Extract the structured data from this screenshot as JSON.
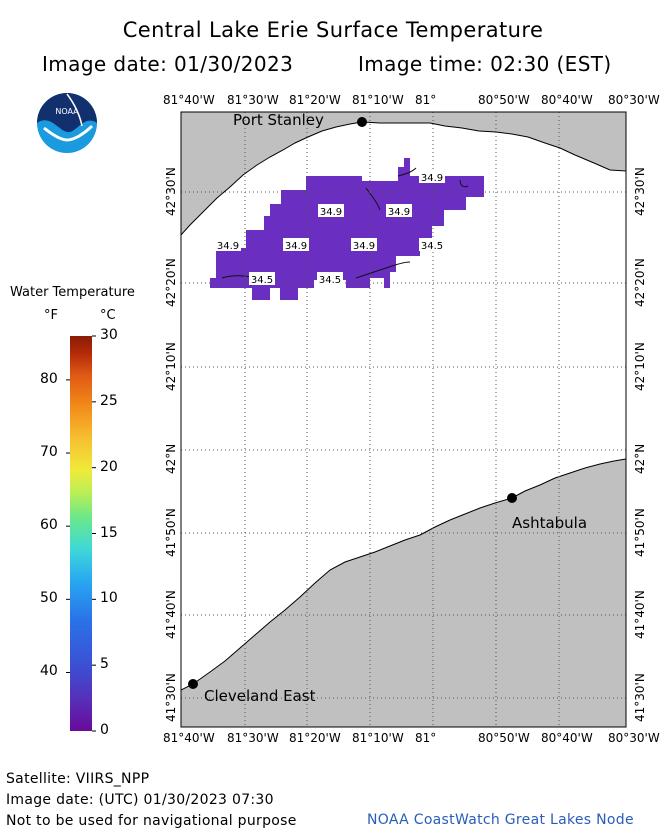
{
  "title": "Central Lake Erie Surface Temperature",
  "image_date": "Image date: 01/30/2023",
  "image_time": "Image time: 02:30 (EST)",
  "logo_text": "NOAA",
  "legend": {
    "title": "Water Temperature",
    "unit_f": "°F",
    "unit_c": "°C",
    "fahrenheit_ticks": [
      "80",
      "70",
      "60",
      "50",
      "40"
    ],
    "celsius_ticks": [
      "30",
      "25",
      "20",
      "15",
      "10",
      "5",
      "0"
    ]
  },
  "longitude_labels": [
    "81°40'W",
    "81°30'W",
    "81°20'W",
    "81°10'W",
    "81°",
    "80°50'W",
    "80°40'W",
    "80°30'W"
  ],
  "latitude_labels": [
    "42°30'N",
    "42°20'N",
    "42°10'N",
    "42°N",
    "41°50'N",
    "41°40'N",
    "41°30'N"
  ],
  "cities": [
    {
      "name": "Port Stanley"
    },
    {
      "name": "Ashtabula"
    },
    {
      "name": "Cleveland East"
    }
  ],
  "temperature_labels": [
    "34.9",
    "34.9",
    "34.9",
    "34.9",
    "34.9",
    "34.9",
    "34.5",
    "34.5",
    "34.5"
  ],
  "footer": {
    "satellite": "Satellite: VIIRS_NPP",
    "utc_date": "Image date: (UTC) 01/30/2023  07:30",
    "disclaimer": "Not to be used for navigational purpose",
    "credit": "NOAA CoastWatch Great Lakes Node"
  },
  "colors": {
    "land": "#c0c0c0",
    "water": "#ffffff",
    "sst": "#6a2fc0",
    "credit": "#2a5db8"
  }
}
